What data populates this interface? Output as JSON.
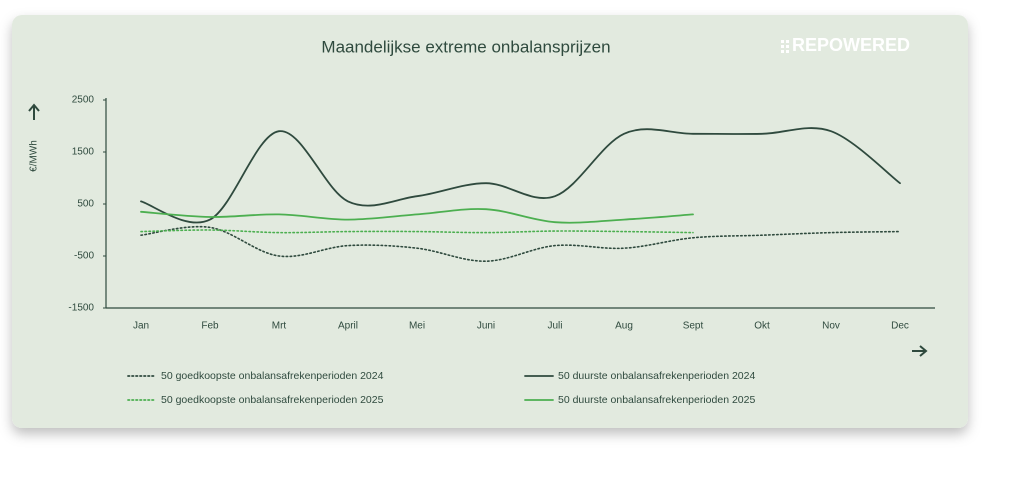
{
  "chart_data": {
    "type": "line",
    "title": "Maandelijkse extreme onbalansprijzen",
    "logo": "REPOWERED",
    "y_label": "€/MWh",
    "categories": [
      "Jan",
      "Feb",
      "Mrt",
      "April",
      "Mei",
      "Juni",
      "Juli",
      "Aug",
      "Sept",
      "Okt",
      "Nov",
      "Dec"
    ],
    "ylim": [
      -1500,
      2500
    ],
    "yticks": [
      -1500,
      -500,
      500,
      1500,
      2500
    ],
    "grid": false,
    "legend": "bottom",
    "series": [
      {
        "name": "50 goedkoopste onbalansafrekenperioden 2024",
        "color": "#2f4a3e",
        "style": "dotted",
        "values": [
          -100,
          50,
          -500,
          -300,
          -350,
          -600,
          -300,
          -350,
          -150,
          -100,
          -50,
          -30
        ]
      },
      {
        "name": "50 duurste onbalansafrekenperioden 2024",
        "color": "#2f4a3e",
        "style": "solid",
        "values": [
          550,
          200,
          1900,
          550,
          650,
          900,
          650,
          1850,
          1850,
          1850,
          1900,
          900
        ]
      },
      {
        "name": "50 goedkoopste onbalansafrekenperioden 2025",
        "color": "#4caf50",
        "style": "dotted",
        "values": [
          -30,
          0,
          -50,
          -30,
          -30,
          -50,
          -20,
          -30,
          -50,
          null,
          null,
          null
        ]
      },
      {
        "name": "50 duurste onbalansafrekenperioden 2025",
        "color": "#4caf50",
        "style": "solid",
        "values": [
          350,
          250,
          300,
          200,
          300,
          400,
          150,
          200,
          300,
          null,
          null,
          null
        ]
      }
    ]
  }
}
